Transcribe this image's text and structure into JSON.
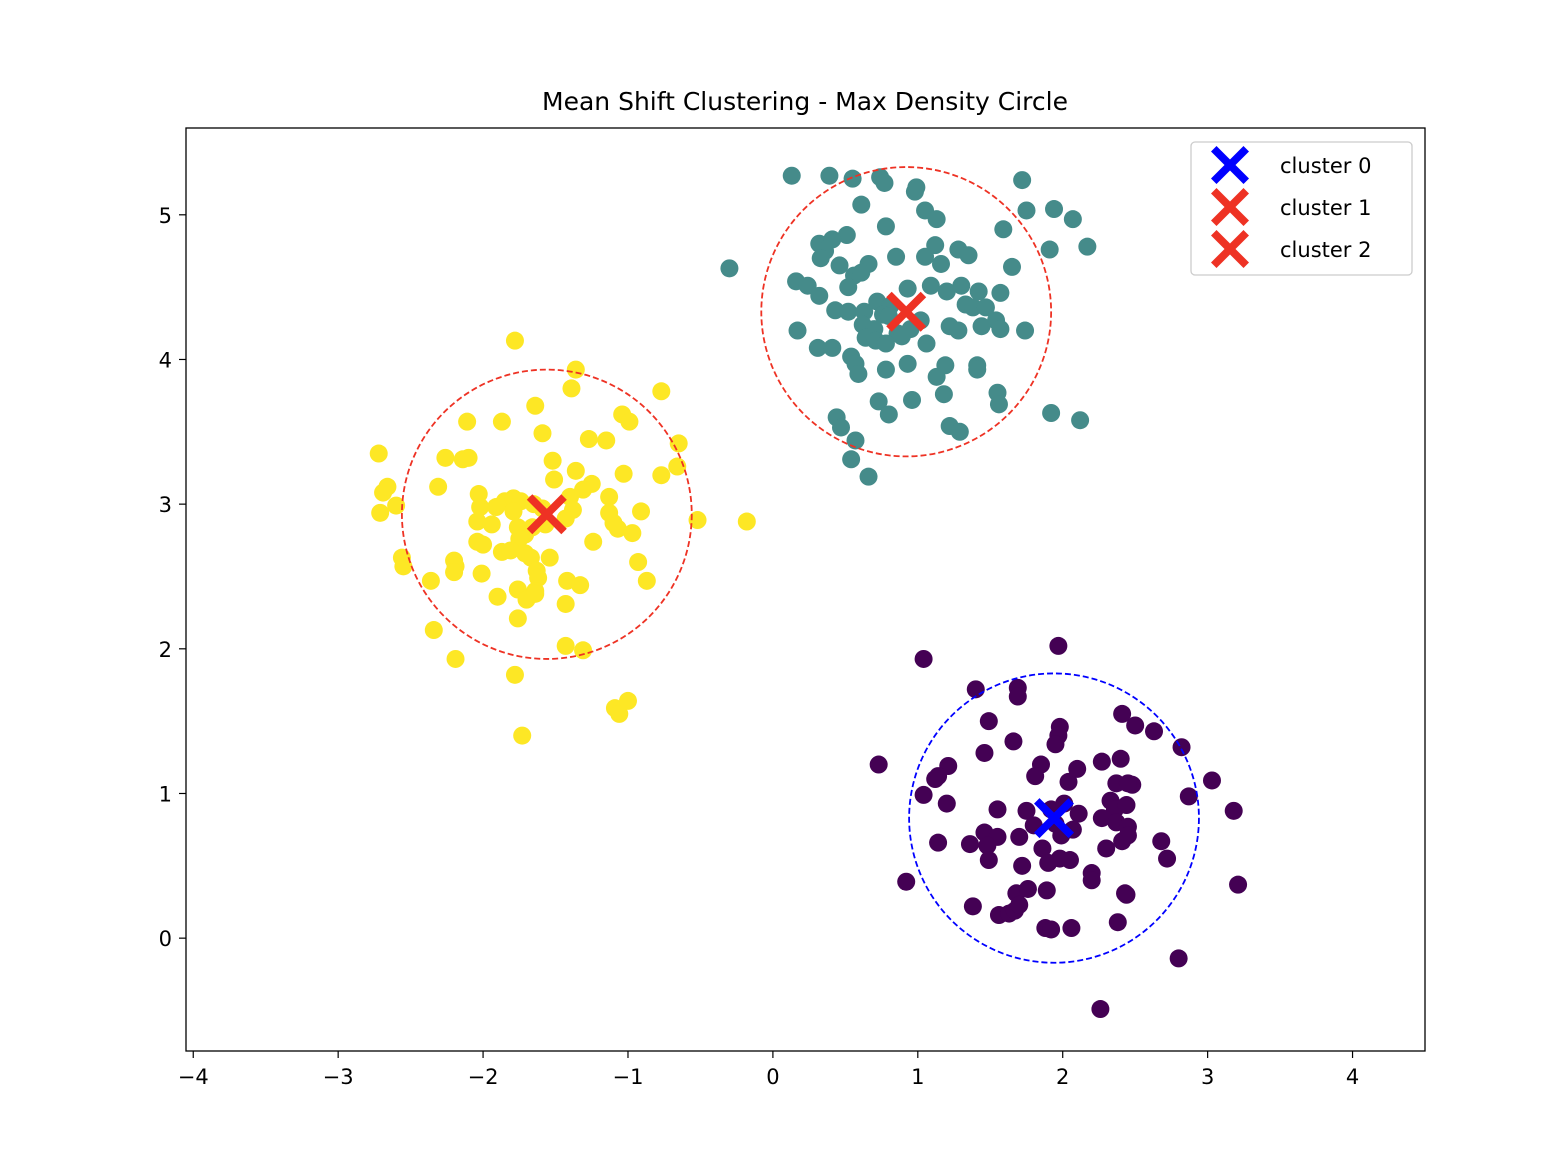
{
  "chart_data": {
    "type": "scatter",
    "title": "Mean Shift Clustering - Max Density Circle",
    "xlabel": "",
    "ylabel": "",
    "xlim": [
      -4.05,
      4.5
    ],
    "ylim": [
      -0.78,
      5.6
    ],
    "xticks": [
      -4,
      -3,
      -2,
      -1,
      0,
      1,
      2,
      3,
      4
    ],
    "xtick_labels": [
      "−4",
      "−3",
      "−2",
      "−1",
      "0",
      "1",
      "2",
      "3",
      "4"
    ],
    "yticks": [
      0,
      1,
      2,
      3,
      4,
      5
    ],
    "ytick_labels": [
      "0",
      "1",
      "2",
      "3",
      "4",
      "5"
    ],
    "grid": false,
    "legend_position": "top-right",
    "point_groups": [
      {
        "color": "#440154",
        "points": [
          [
            1.97,
            2.02
          ],
          [
            1.04,
            1.93
          ],
          [
            1.4,
            1.72
          ],
          [
            1.69,
            1.73
          ],
          [
            1.69,
            1.67
          ],
          [
            1.49,
            1.5
          ],
          [
            1.98,
            1.46
          ],
          [
            2.41,
            1.55
          ],
          [
            2.5,
            1.47
          ],
          [
            2.63,
            1.43
          ],
          [
            1.97,
            1.4
          ],
          [
            1.66,
            1.36
          ],
          [
            1.95,
            1.34
          ],
          [
            0.73,
            1.2
          ],
          [
            1.21,
            1.19
          ],
          [
            1.46,
            1.28
          ],
          [
            2.4,
            1.24
          ],
          [
            2.27,
            1.22
          ],
          [
            1.12,
            1.1
          ],
          [
            1.14,
            1.12
          ],
          [
            1.85,
            1.2
          ],
          [
            2.04,
            1.08
          ],
          [
            2.1,
            1.17
          ],
          [
            1.81,
            1.12
          ],
          [
            2.37,
            1.07
          ],
          [
            2.48,
            1.06
          ],
          [
            2.45,
            1.07
          ],
          [
            2.82,
            1.32
          ],
          [
            3.03,
            1.09
          ],
          [
            1.04,
            0.99
          ],
          [
            1.2,
            0.93
          ],
          [
            1.55,
            0.89
          ],
          [
            1.75,
            0.88
          ],
          [
            1.92,
            0.89
          ],
          [
            2.01,
            0.93
          ],
          [
            2.11,
            0.86
          ],
          [
            2.33,
            0.95
          ],
          [
            2.36,
            0.89
          ],
          [
            2.44,
            0.92
          ],
          [
            2.87,
            0.98
          ],
          [
            3.18,
            0.88
          ],
          [
            1.8,
            0.78
          ],
          [
            1.95,
            0.79
          ],
          [
            2.07,
            0.75
          ],
          [
            2.27,
            0.83
          ],
          [
            2.37,
            0.8
          ],
          [
            2.45,
            0.77
          ],
          [
            1.46,
            0.73
          ],
          [
            1.55,
            0.7
          ],
          [
            1.7,
            0.7
          ],
          [
            1.99,
            0.71
          ],
          [
            2.41,
            0.67
          ],
          [
            2.45,
            0.71
          ],
          [
            2.68,
            0.67
          ],
          [
            1.14,
            0.66
          ],
          [
            1.36,
            0.65
          ],
          [
            1.48,
            0.64
          ],
          [
            1.86,
            0.62
          ],
          [
            2.3,
            0.62
          ],
          [
            1.98,
            0.55
          ],
          [
            2.05,
            0.54
          ],
          [
            1.9,
            0.52
          ],
          [
            1.49,
            0.54
          ],
          [
            1.72,
            0.5
          ],
          [
            2.72,
            0.55
          ],
          [
            2.2,
            0.45
          ],
          [
            2.2,
            0.4
          ],
          [
            1.68,
            0.31
          ],
          [
            1.76,
            0.34
          ],
          [
            1.89,
            0.33
          ],
          [
            2.43,
            0.31
          ],
          [
            2.44,
            0.3
          ],
          [
            0.92,
            0.39
          ],
          [
            1.38,
            0.22
          ],
          [
            1.56,
            0.16
          ],
          [
            1.63,
            0.17
          ],
          [
            1.67,
            0.19
          ],
          [
            1.7,
            0.23
          ],
          [
            1.88,
            0.07
          ],
          [
            1.92,
            0.06
          ],
          [
            2.06,
            0.07
          ],
          [
            2.38,
            0.11
          ],
          [
            3.21,
            0.37
          ],
          [
            2.8,
            -0.14
          ],
          [
            2.26,
            -0.49
          ]
        ]
      },
      {
        "color": "#458b8a",
        "points": [
          [
            0.13,
            5.27
          ],
          [
            0.39,
            5.27
          ],
          [
            0.55,
            5.25
          ],
          [
            0.74,
            5.26
          ],
          [
            0.77,
            5.22
          ],
          [
            1.72,
            5.24
          ],
          [
            0.98,
            5.16
          ],
          [
            0.99,
            5.19
          ],
          [
            0.61,
            5.07
          ],
          [
            1.05,
            5.03
          ],
          [
            1.13,
            4.97
          ],
          [
            1.75,
            5.03
          ],
          [
            1.94,
            5.04
          ],
          [
            2.07,
            4.97
          ],
          [
            0.78,
            4.92
          ],
          [
            0.51,
            4.86
          ],
          [
            0.32,
            4.8
          ],
          [
            0.36,
            4.75
          ],
          [
            0.41,
            4.83
          ],
          [
            1.12,
            4.79
          ],
          [
            1.28,
            4.76
          ],
          [
            1.35,
            4.72
          ],
          [
            1.59,
            4.9
          ],
          [
            1.91,
            4.76
          ],
          [
            2.17,
            4.78
          ],
          [
            0.33,
            4.7
          ],
          [
            0.46,
            4.65
          ],
          [
            0.66,
            4.66
          ],
          [
            0.85,
            4.71
          ],
          [
            1.05,
            4.71
          ],
          [
            1.16,
            4.66
          ],
          [
            1.65,
            4.64
          ],
          [
            -0.3,
            4.63
          ],
          [
            0.16,
            4.54
          ],
          [
            0.24,
            4.51
          ],
          [
            0.56,
            4.58
          ],
          [
            0.61,
            4.6
          ],
          [
            0.52,
            4.5
          ],
          [
            0.93,
            4.49
          ],
          [
            1.09,
            4.51
          ],
          [
            1.2,
            4.47
          ],
          [
            1.3,
            4.51
          ],
          [
            1.42,
            4.47
          ],
          [
            1.57,
            4.46
          ],
          [
            0.32,
            4.44
          ],
          [
            0.72,
            4.4
          ],
          [
            0.81,
            4.37
          ],
          [
            1.33,
            4.38
          ],
          [
            1.38,
            4.36
          ],
          [
            1.47,
            4.36
          ],
          [
            0.43,
            4.34
          ],
          [
            0.52,
            4.33
          ],
          [
            0.63,
            4.33
          ],
          [
            0.76,
            4.31
          ],
          [
            0.8,
            4.3
          ],
          [
            1.02,
            4.27
          ],
          [
            1.54,
            4.27
          ],
          [
            0.62,
            4.24
          ],
          [
            0.7,
            4.21
          ],
          [
            0.86,
            4.18
          ],
          [
            0.95,
            4.21
          ],
          [
            1.22,
            4.23
          ],
          [
            1.28,
            4.2
          ],
          [
            1.44,
            4.23
          ],
          [
            1.57,
            4.21
          ],
          [
            1.74,
            4.2
          ],
          [
            0.17,
            4.2
          ],
          [
            0.64,
            4.15
          ],
          [
            0.71,
            4.13
          ],
          [
            0.78,
            4.11
          ],
          [
            0.89,
            4.16
          ],
          [
            1.06,
            4.11
          ],
          [
            0.31,
            4.08
          ],
          [
            0.41,
            4.08
          ],
          [
            0.54,
            4.02
          ],
          [
            0.57,
            3.97
          ],
          [
            0.59,
            3.9
          ],
          [
            0.78,
            3.93
          ],
          [
            0.93,
            3.97
          ],
          [
            1.19,
            3.96
          ],
          [
            1.13,
            3.88
          ],
          [
            1.41,
            3.96
          ],
          [
            1.41,
            3.93
          ],
          [
            1.55,
            3.77
          ],
          [
            1.56,
            3.69
          ],
          [
            0.73,
            3.71
          ],
          [
            0.96,
            3.72
          ],
          [
            0.8,
            3.62
          ],
          [
            1.18,
            3.76
          ],
          [
            1.92,
            3.63
          ],
          [
            2.12,
            3.58
          ],
          [
            0.44,
            3.6
          ],
          [
            0.47,
            3.53
          ],
          [
            1.22,
            3.54
          ],
          [
            1.29,
            3.5
          ],
          [
            0.57,
            3.44
          ],
          [
            0.54,
            3.31
          ],
          [
            0.66,
            3.19
          ]
        ]
      },
      {
        "color": "#fde725",
        "points": [
          [
            -1.78,
            4.13
          ],
          [
            -1.36,
            3.93
          ],
          [
            -1.39,
            3.8
          ],
          [
            -0.77,
            3.78
          ],
          [
            -1.64,
            3.68
          ],
          [
            -1.04,
            3.62
          ],
          [
            -0.99,
            3.57
          ],
          [
            -2.11,
            3.57
          ],
          [
            -1.87,
            3.57
          ],
          [
            -1.59,
            3.49
          ],
          [
            -1.27,
            3.45
          ],
          [
            -1.15,
            3.44
          ],
          [
            -0.65,
            3.42
          ],
          [
            -2.72,
            3.35
          ],
          [
            -2.26,
            3.32
          ],
          [
            -2.14,
            3.31
          ],
          [
            -2.1,
            3.32
          ],
          [
            -1.52,
            3.3
          ],
          [
            -0.66,
            3.26
          ],
          [
            -1.36,
            3.23
          ],
          [
            -1.03,
            3.21
          ],
          [
            -0.77,
            3.2
          ],
          [
            -1.51,
            3.17
          ],
          [
            -1.25,
            3.14
          ],
          [
            -2.69,
            3.08
          ],
          [
            -2.66,
            3.12
          ],
          [
            -2.31,
            3.12
          ],
          [
            -2.03,
            3.07
          ],
          [
            -1.85,
            3.02
          ],
          [
            -1.79,
            3.04
          ],
          [
            -1.74,
            3.02
          ],
          [
            -1.65,
            3.0
          ],
          [
            -1.4,
            3.05
          ],
          [
            -1.31,
            3.1
          ],
          [
            -1.13,
            3.05
          ],
          [
            -2.71,
            2.94
          ],
          [
            -2.6,
            2.99
          ],
          [
            -2.02,
            2.98
          ],
          [
            -1.91,
            2.98
          ],
          [
            -1.79,
            2.95
          ],
          [
            -1.59,
            2.97
          ],
          [
            -1.38,
            2.96
          ],
          [
            -1.13,
            2.94
          ],
          [
            -0.91,
            2.95
          ],
          [
            -0.52,
            2.89
          ],
          [
            -0.18,
            2.88
          ],
          [
            -2.04,
            2.88
          ],
          [
            -1.94,
            2.86
          ],
          [
            -1.76,
            2.84
          ],
          [
            -1.66,
            2.84
          ],
          [
            -1.57,
            2.86
          ],
          [
            -1.43,
            2.9
          ],
          [
            -1.1,
            2.87
          ],
          [
            -1.07,
            2.83
          ],
          [
            -0.97,
            2.8
          ],
          [
            -1.71,
            2.79
          ],
          [
            -1.75,
            2.76
          ],
          [
            -2.04,
            2.74
          ],
          [
            -2.0,
            2.72
          ],
          [
            -1.87,
            2.67
          ],
          [
            -1.81,
            2.68
          ],
          [
            -1.71,
            2.66
          ],
          [
            -1.67,
            2.63
          ],
          [
            -1.54,
            2.63
          ],
          [
            -1.24,
            2.74
          ],
          [
            -0.93,
            2.6
          ],
          [
            -2.56,
            2.63
          ],
          [
            -2.55,
            2.57
          ],
          [
            -2.2,
            2.61
          ],
          [
            -2.19,
            2.57
          ],
          [
            -2.2,
            2.53
          ],
          [
            -2.01,
            2.52
          ],
          [
            -1.63,
            2.54
          ],
          [
            -1.62,
            2.49
          ],
          [
            -1.42,
            2.47
          ],
          [
            -1.76,
            2.41
          ],
          [
            -1.64,
            2.4
          ],
          [
            -1.33,
            2.44
          ],
          [
            -0.87,
            2.47
          ],
          [
            -2.36,
            2.47
          ],
          [
            -1.9,
            2.36
          ],
          [
            -1.7,
            2.34
          ],
          [
            -1.64,
            2.38
          ],
          [
            -1.43,
            2.31
          ],
          [
            -1.76,
            2.21
          ],
          [
            -2.34,
            2.13
          ],
          [
            -1.43,
            2.02
          ],
          [
            -1.31,
            1.99
          ],
          [
            -2.19,
            1.93
          ],
          [
            -1.78,
            1.82
          ],
          [
            -1.09,
            1.59
          ],
          [
            -1.06,
            1.55
          ],
          [
            -1.0,
            1.64
          ],
          [
            -1.73,
            1.4
          ]
        ]
      }
    ],
    "clusters": [
      {
        "label": "cluster 0",
        "center": [
          1.94,
          0.83
        ],
        "marker": "X",
        "marker_color": "#0000ff",
        "circle_color": "#0000ff",
        "radius": 1.0
      },
      {
        "label": "cluster 1",
        "center": [
          0.92,
          4.33
        ],
        "marker": "X",
        "marker_color": "#ee3224",
        "circle_color": "#ee3224",
        "radius": 1.0
      },
      {
        "label": "cluster 2",
        "center": [
          -1.56,
          2.93
        ],
        "marker": "X",
        "marker_color": "#ee3224",
        "circle_color": "#ee3224",
        "radius": 1.0
      }
    ]
  }
}
